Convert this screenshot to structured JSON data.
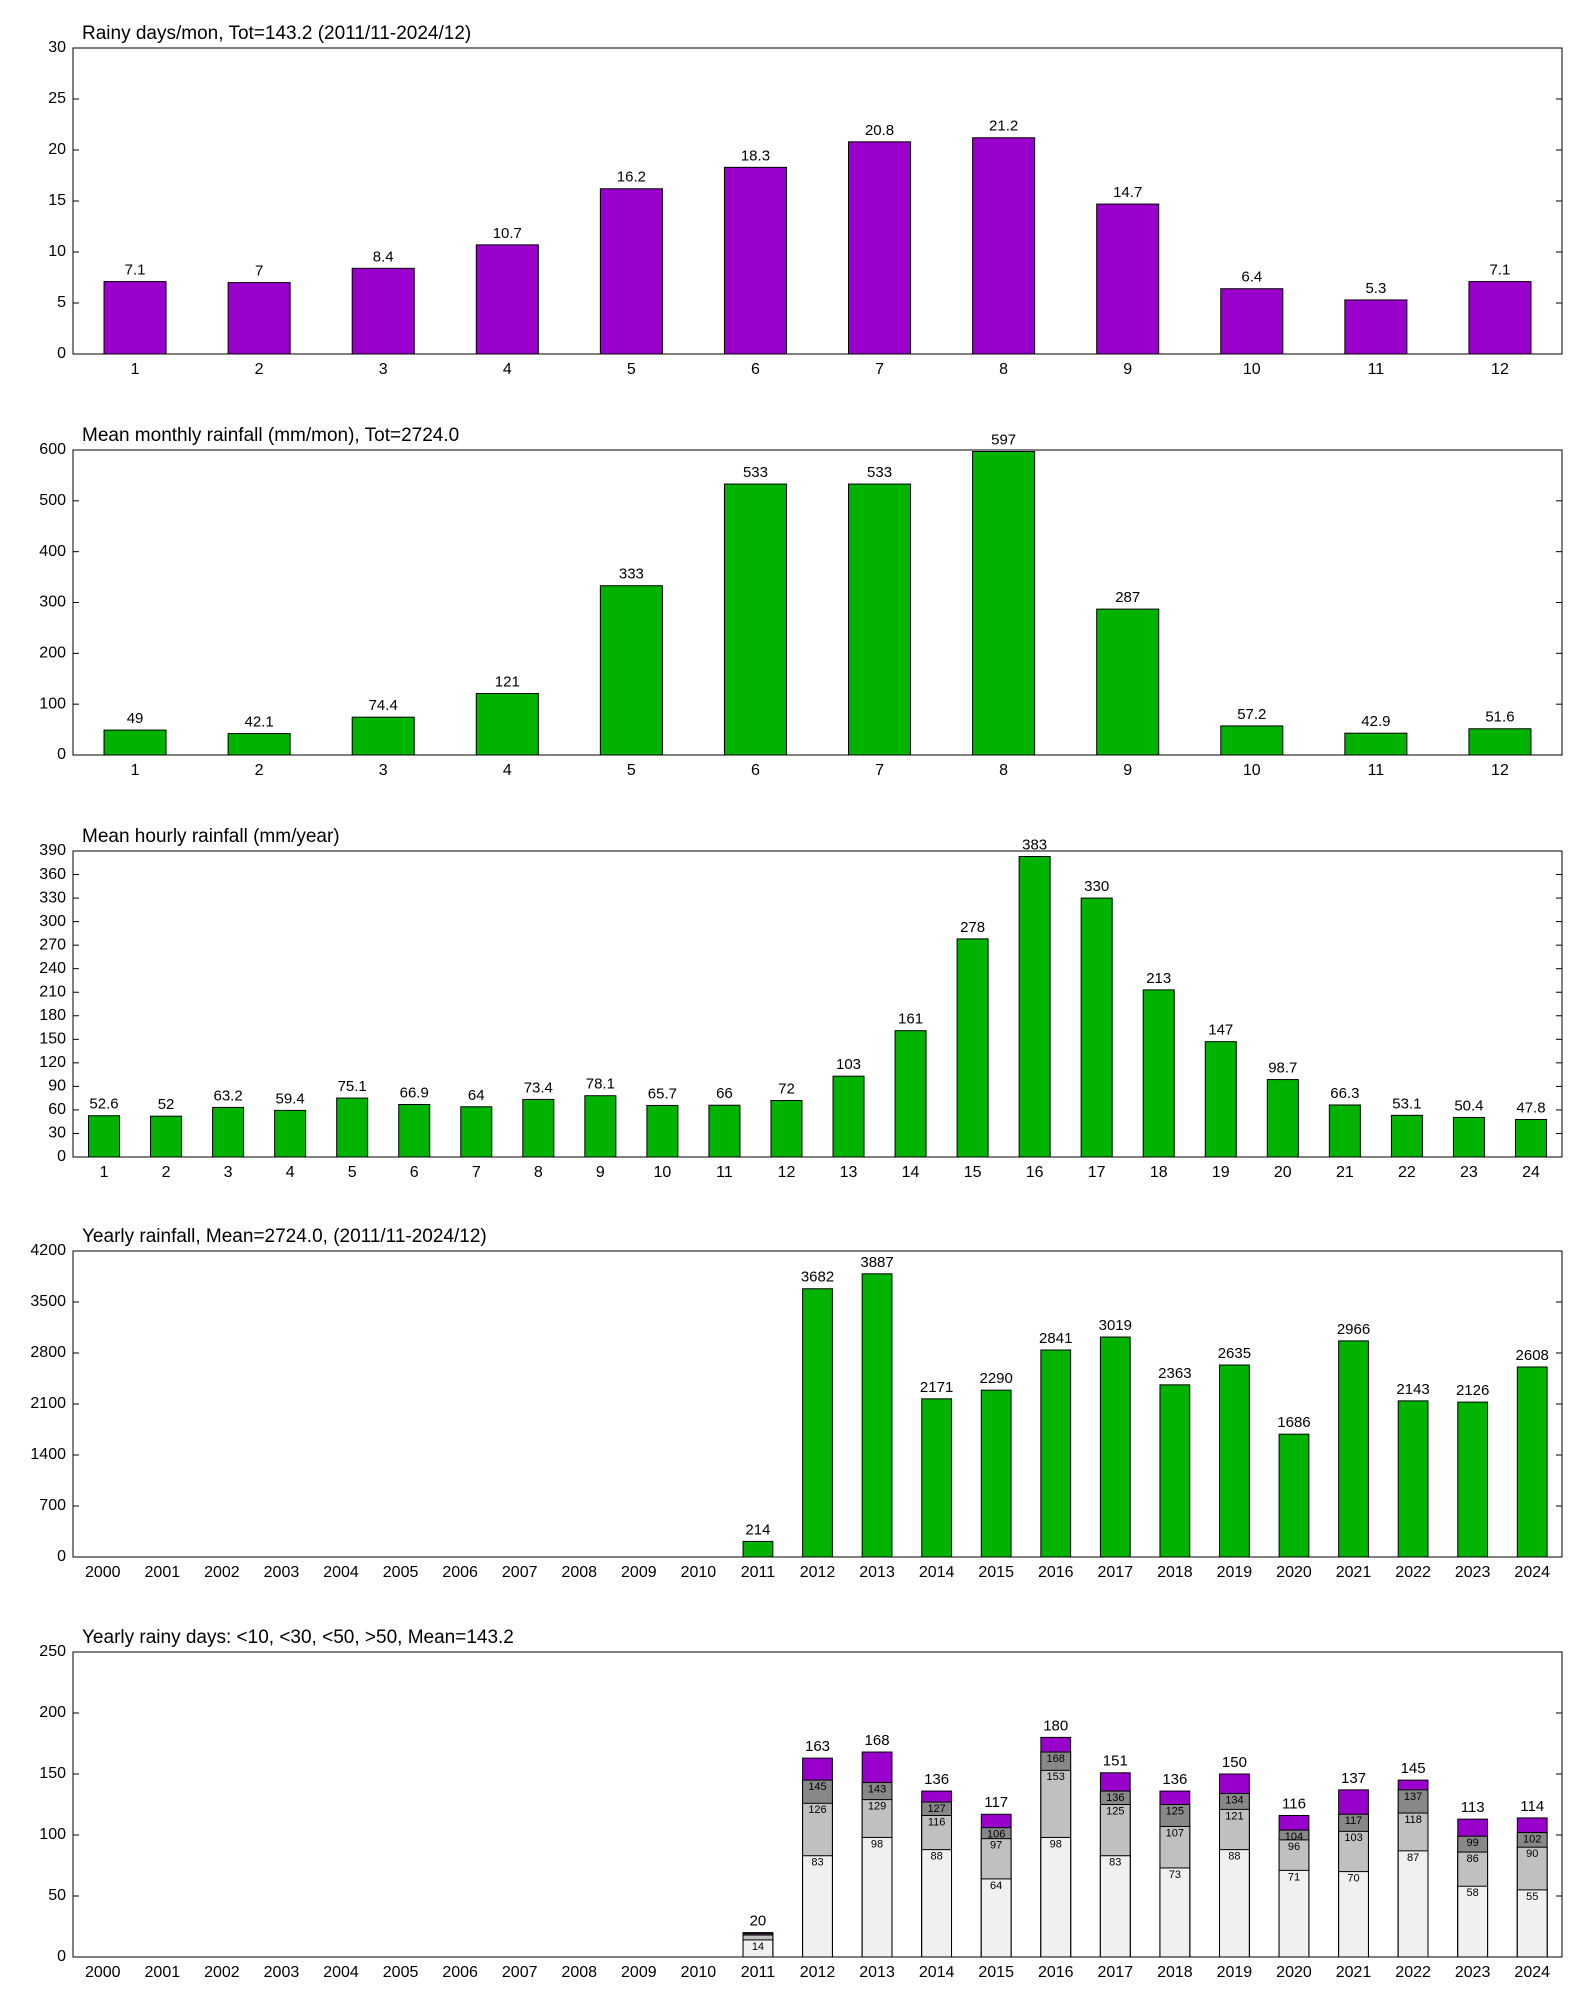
{
  "chart_data": [
    {
      "type": "bar",
      "title": "Rainy days/mon, Tot=143.2 (2011/11-2024/12)",
      "categories": [
        "1",
        "2",
        "3",
        "4",
        "5",
        "6",
        "7",
        "8",
        "9",
        "10",
        "11",
        "12"
      ],
      "values": [
        7.1,
        7,
        8.4,
        10.7,
        16.2,
        18.3,
        20.8,
        21.2,
        14.7,
        6.4,
        5.3,
        7.1
      ],
      "color": "#9900cc",
      "ylim": [
        0,
        30
      ],
      "yticks": [
        0,
        5,
        10,
        15,
        20,
        25,
        30
      ]
    },
    {
      "type": "bar",
      "title": "Mean monthly rainfall (mm/mon), Tot=2724.0",
      "categories": [
        "1",
        "2",
        "3",
        "4",
        "5",
        "6",
        "7",
        "8",
        "9",
        "10",
        "11",
        "12"
      ],
      "values": [
        49,
        42.1,
        74.4,
        121,
        333,
        533,
        533,
        597,
        287,
        57.2,
        42.9,
        51.6
      ],
      "color": "#00b300",
      "ylim": [
        0,
        600
      ],
      "yticks": [
        0,
        100,
        200,
        300,
        400,
        500,
        600
      ]
    },
    {
      "type": "bar",
      "title": "Mean hourly rainfall (mm/year)",
      "categories": [
        "1",
        "2",
        "3",
        "4",
        "5",
        "6",
        "7",
        "8",
        "9",
        "10",
        "11",
        "12",
        "13",
        "14",
        "15",
        "16",
        "17",
        "18",
        "19",
        "20",
        "21",
        "22",
        "23",
        "24"
      ],
      "values": [
        52.6,
        52,
        63.2,
        59.4,
        75.1,
        66.9,
        64,
        73.4,
        78.1,
        65.7,
        66,
        72,
        103,
        161,
        278,
        383,
        330,
        213,
        147,
        98.7,
        66.3,
        53.1,
        50.4,
        47.8
      ],
      "color": "#00b300",
      "ylim": [
        0,
        390
      ],
      "yticks": [
        0,
        30,
        60,
        90,
        120,
        150,
        180,
        210,
        240,
        270,
        300,
        330,
        360,
        390
      ]
    },
    {
      "type": "bar",
      "title": "Yearly rainfall, Mean=2724.0, (2011/11-2024/12)",
      "categories": [
        "2000",
        "2001",
        "2002",
        "2003",
        "2004",
        "2005",
        "2006",
        "2007",
        "2008",
        "2009",
        "2010",
        "2011",
        "2012",
        "2013",
        "2014",
        "2015",
        "2016",
        "2017",
        "2018",
        "2019",
        "2020",
        "2021",
        "2022",
        "2023",
        "2024"
      ],
      "values": [
        null,
        null,
        null,
        null,
        null,
        null,
        null,
        null,
        null,
        null,
        null,
        214,
        3682,
        3887,
        2171,
        2290,
        2841,
        3019,
        2363,
        2635,
        1686,
        2966,
        2143,
        2126,
        2608
      ],
      "color": "#00b300",
      "ylim": [
        0,
        4200
      ],
      "yticks": [
        0,
        700,
        1400,
        2100,
        2800,
        3500,
        4200
      ]
    },
    {
      "type": "overlapping_bar",
      "title": "Yearly rainy days: <10, <30, <50, >50, Mean=143.2",
      "categories": [
        "2000",
        "2001",
        "2002",
        "2003",
        "2004",
        "2005",
        "2006",
        "2007",
        "2008",
        "2009",
        "2010",
        "2011",
        "2012",
        "2013",
        "2014",
        "2015",
        "2016",
        "2017",
        "2018",
        "2019",
        "2020",
        "2021",
        "2022",
        "2023",
        "2024"
      ],
      "series": [
        {
          "color": "#f0f0f0",
          "values": [
            null,
            null,
            null,
            null,
            null,
            null,
            null,
            null,
            null,
            null,
            null,
            14,
            83,
            98,
            88,
            64,
            98,
            83,
            73,
            88,
            71,
            70,
            87,
            58,
            55
          ]
        },
        {
          "color": "#c0c0c0",
          "values": [
            null,
            null,
            null,
            null,
            null,
            null,
            null,
            null,
            null,
            null,
            null,
            18,
            126,
            129,
            116,
            97,
            153,
            125,
            107,
            121,
            96,
            103,
            118,
            86,
            90
          ]
        },
        {
          "color": "#888888",
          "values": [
            null,
            null,
            null,
            null,
            null,
            null,
            null,
            null,
            null,
            null,
            null,
            19,
            145,
            143,
            127,
            106,
            168,
            136,
            125,
            134,
            104,
            117,
            137,
            99,
            102
          ]
        },
        {
          "color": "#9900cc",
          "values": [
            null,
            null,
            null,
            null,
            null,
            null,
            null,
            null,
            null,
            null,
            null,
            20,
            163,
            168,
            136,
            117,
            180,
            151,
            136,
            150,
            116,
            137,
            145,
            113,
            114
          ]
        }
      ],
      "ylim": [
        0,
        250
      ],
      "yticks": [
        0,
        50,
        100,
        150,
        200,
        250
      ]
    }
  ]
}
